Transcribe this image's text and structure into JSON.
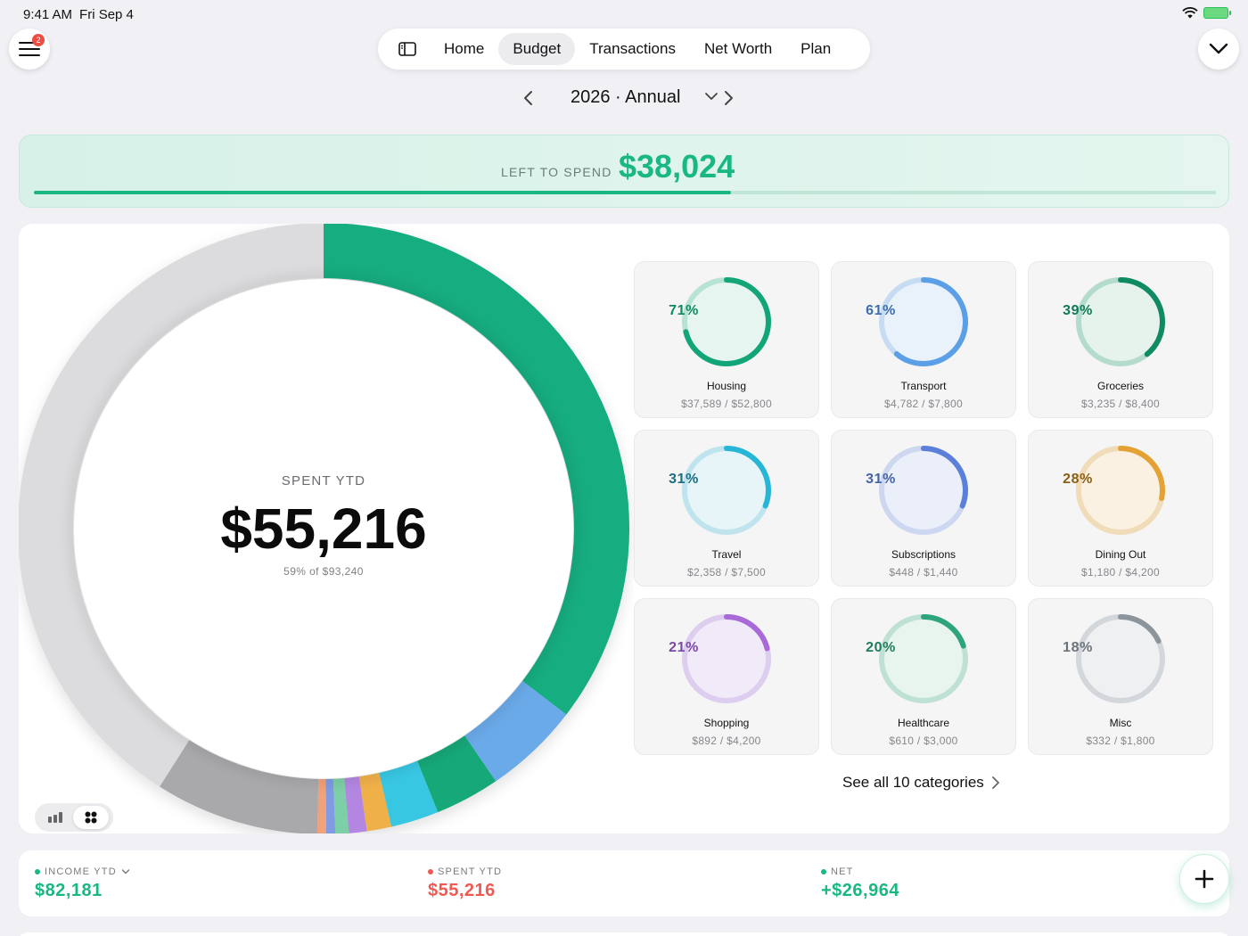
{
  "status_bar": {
    "time": "9:41 AM",
    "date": "Fri Sep 4"
  },
  "menu": {
    "badge": "2"
  },
  "nav": {
    "tabs": [
      {
        "label": "Home",
        "active": false
      },
      {
        "label": "Budget",
        "active": true
      },
      {
        "label": "Transactions",
        "active": false
      },
      {
        "label": "Net Worth",
        "active": false
      },
      {
        "label": "Plan",
        "active": false
      }
    ]
  },
  "period": {
    "label": "2026 · Annual"
  },
  "left_to_spend": {
    "label": "LEFT TO SPEND",
    "value": "$38,024",
    "progress": 0.59
  },
  "donut": {
    "kicker": "SPENT YTD",
    "value": "$55,216",
    "sub": "59% of $93,240",
    "colors": {
      "track": "#dcdcde",
      "primary": "#15b083"
    }
  },
  "categories": [
    {
      "name": "Housing",
      "amount": "$37,589 / $52,800",
      "pct_label": "71%",
      "fraction": 0.71,
      "color": "#11a578",
      "light": "#b7e3d2",
      "fill": "#e6f5ef",
      "text": "#0f8a62"
    },
    {
      "name": "Transport",
      "amount": "$4,782 / $7,800",
      "pct_label": "61%",
      "fraction": 0.61,
      "color": "#5b9fe6",
      "light": "#c6dcf3",
      "fill": "#e9f1fb",
      "text": "#3b6fae"
    },
    {
      "name": "Groceries",
      "amount": "$3,235 / $8,400",
      "pct_label": "39%",
      "fraction": 0.39,
      "color": "#108a62",
      "light": "#b4dccc",
      "fill": "#e5f3ec",
      "text": "#0f7a56"
    },
    {
      "name": "Travel",
      "amount": "$2,358 / $7,500",
      "pct_label": "31%",
      "fraction": 0.31,
      "color": "#28b6d6",
      "light": "#bfe4ee",
      "fill": "#e7f5f9",
      "text": "#1a6d82"
    },
    {
      "name": "Subscriptions",
      "amount": "$448 / $1,440",
      "pct_label": "31%",
      "fraction": 0.31,
      "color": "#5c7fd9",
      "light": "#cdd7f0",
      "fill": "#ebeffa",
      "text": "#4463a8"
    },
    {
      "name": "Dining Out",
      "amount": "$1,180 / $4,200",
      "pct_label": "28%",
      "fraction": 0.28,
      "color": "#e3a233",
      "light": "#f0dcb8",
      "fill": "#faf1e2",
      "text": "#8a5f12"
    },
    {
      "name": "Shopping",
      "amount": "$892 / $4,200",
      "pct_label": "21%",
      "fraction": 0.21,
      "color": "#a76ad8",
      "light": "#ddcdee",
      "fill": "#f1ebf9",
      "text": "#7a48a8"
    },
    {
      "name": "Healthcare",
      "amount": "$610 / $3,000",
      "pct_label": "20%",
      "fraction": 0.2,
      "color": "#2da47c",
      "light": "#bfe1d3",
      "fill": "#e8f5ef",
      "text": "#1e7d5d"
    },
    {
      "name": "Misc",
      "amount": "$332 / $1,800",
      "pct_label": "18%",
      "fraction": 0.18,
      "color": "#8c949c",
      "light": "#d3d6da",
      "fill": "#eef0f2",
      "text": "#6c737a"
    }
  ],
  "see_all": {
    "label": "See all 10 categories"
  },
  "summary": {
    "income": {
      "label": "INCOME YTD",
      "value": "$82,181",
      "color": "#19b784"
    },
    "spent": {
      "label": "SPENT YTD",
      "value": "$55,216",
      "color": "#ee5a52"
    },
    "net": {
      "label": "NET",
      "value": "+$26,964",
      "color": "#19b784"
    }
  }
}
